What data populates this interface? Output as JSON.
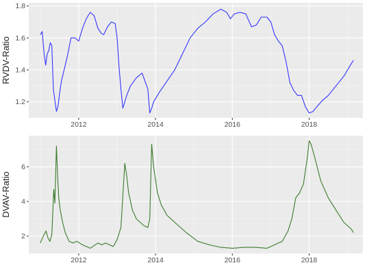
{
  "chart_data": [
    {
      "type": "line",
      "ylabel": "RVDV-Ratio",
      "xlabel": "",
      "title": "",
      "xlim": [
        2010.7,
        2019.4
      ],
      "ylim": [
        1.1,
        1.82
      ],
      "xticks": [
        2012,
        2014,
        2016,
        2018
      ],
      "xtick_labels": [
        "2012",
        "2014",
        "2016",
        "2018"
      ],
      "yticks": [
        1.2,
        1.4,
        1.6,
        1.8
      ],
      "ytick_labels": [
        "1.2",
        "1.4",
        "1.6",
        "1.8"
      ],
      "grid": true,
      "color": "#3333ff",
      "series": [
        {
          "x": [
            2011.0,
            2011.05,
            2011.1,
            2011.14,
            2011.18,
            2011.22,
            2011.26,
            2011.3,
            2011.34,
            2011.38,
            2011.42,
            2011.46,
            2011.5,
            2011.55,
            2011.62,
            2011.7,
            2011.8,
            2011.9,
            2012.0,
            2012.1,
            2012.2,
            2012.3,
            2012.4,
            2012.5,
            2012.58,
            2012.65,
            2012.75,
            2012.85,
            2012.95,
            2013.0,
            2013.05,
            2013.1,
            2013.15,
            2013.2,
            2013.25,
            2013.35,
            2013.5,
            2013.65,
            2013.8,
            2013.85,
            2013.9,
            2013.95,
            2014.1,
            2014.3,
            2014.5,
            2014.7,
            2014.9,
            2015.1,
            2015.3,
            2015.5,
            2015.7,
            2015.85,
            2015.95,
            2016.05,
            2016.2,
            2016.35,
            2016.5,
            2016.62,
            2016.75,
            2016.9,
            2017.0,
            2017.1,
            2017.2,
            2017.3,
            2017.4,
            2017.5,
            2017.6,
            2017.7,
            2017.8,
            2017.9,
            2018.0,
            2018.1,
            2018.2,
            2018.35,
            2018.5,
            2018.7,
            2018.9,
            2019.05,
            2019.15
          ],
          "y": [
            1.62,
            1.64,
            1.5,
            1.43,
            1.5,
            1.52,
            1.57,
            1.55,
            1.28,
            1.21,
            1.14,
            1.17,
            1.25,
            1.33,
            1.4,
            1.48,
            1.6,
            1.6,
            1.58,
            1.66,
            1.72,
            1.76,
            1.74,
            1.66,
            1.63,
            1.62,
            1.67,
            1.7,
            1.69,
            1.6,
            1.42,
            1.28,
            1.16,
            1.2,
            1.24,
            1.3,
            1.35,
            1.38,
            1.28,
            1.13,
            1.16,
            1.2,
            1.26,
            1.33,
            1.4,
            1.5,
            1.6,
            1.66,
            1.7,
            1.75,
            1.78,
            1.76,
            1.72,
            1.75,
            1.76,
            1.75,
            1.67,
            1.68,
            1.73,
            1.73,
            1.7,
            1.62,
            1.58,
            1.55,
            1.45,
            1.32,
            1.27,
            1.24,
            1.24,
            1.17,
            1.13,
            1.14,
            1.17,
            1.21,
            1.24,
            1.3,
            1.36,
            1.42,
            1.46
          ]
        }
      ]
    },
    {
      "type": "line",
      "ylabel": "DVAV-Ratio",
      "xlabel": "",
      "title": "",
      "xlim": [
        2010.7,
        2019.4
      ],
      "ylim": [
        1.0,
        7.8
      ],
      "xticks": [
        2012,
        2014,
        2016,
        2018
      ],
      "xtick_labels": [
        "2012",
        "2014",
        "2016",
        "2018"
      ],
      "yticks": [
        2,
        4,
        6
      ],
      "ytick_labels": [
        "2",
        "4",
        "6"
      ],
      "grid": true,
      "color": "#3a7a2a",
      "series": [
        {
          "x": [
            2011.0,
            2011.08,
            2011.15,
            2011.2,
            2011.25,
            2011.3,
            2011.35,
            2011.38,
            2011.42,
            2011.45,
            2011.48,
            2011.52,
            2011.58,
            2011.65,
            2011.75,
            2011.85,
            2011.95,
            2012.1,
            2012.3,
            2012.5,
            2012.6,
            2012.7,
            2012.8,
            2012.9,
            2013.0,
            2013.1,
            2013.2,
            2013.25,
            2013.3,
            2013.4,
            2013.5,
            2013.6,
            2013.7,
            2013.8,
            2013.85,
            2013.9,
            2013.95,
            2014.05,
            2014.15,
            2014.3,
            2014.5,
            2014.8,
            2015.1,
            2015.4,
            2015.7,
            2016.0,
            2016.3,
            2016.6,
            2016.9,
            2017.1,
            2017.3,
            2017.45,
            2017.55,
            2017.65,
            2017.75,
            2017.85,
            2017.95,
            2018.0,
            2018.05,
            2018.15,
            2018.3,
            2018.5,
            2018.7,
            2018.9,
            2019.1,
            2019.15
          ],
          "y": [
            1.6,
            2.0,
            2.3,
            1.9,
            1.7,
            2.1,
            4.7,
            3.9,
            7.2,
            5.5,
            4.2,
            3.5,
            2.8,
            2.2,
            1.7,
            1.6,
            1.7,
            1.5,
            1.3,
            1.6,
            1.5,
            1.6,
            1.5,
            1.4,
            1.8,
            2.5,
            6.2,
            5.5,
            4.5,
            3.5,
            3.0,
            2.8,
            2.6,
            2.5,
            3.0,
            7.3,
            6.0,
            4.5,
            3.8,
            3.2,
            2.8,
            2.2,
            1.7,
            1.5,
            1.35,
            1.3,
            1.35,
            1.35,
            1.3,
            1.5,
            1.7,
            2.3,
            3.0,
            4.2,
            4.5,
            5.0,
            6.5,
            7.5,
            7.3,
            6.5,
            5.2,
            4.2,
            3.5,
            2.8,
            2.4,
            2.2
          ]
        }
      ]
    }
  ]
}
